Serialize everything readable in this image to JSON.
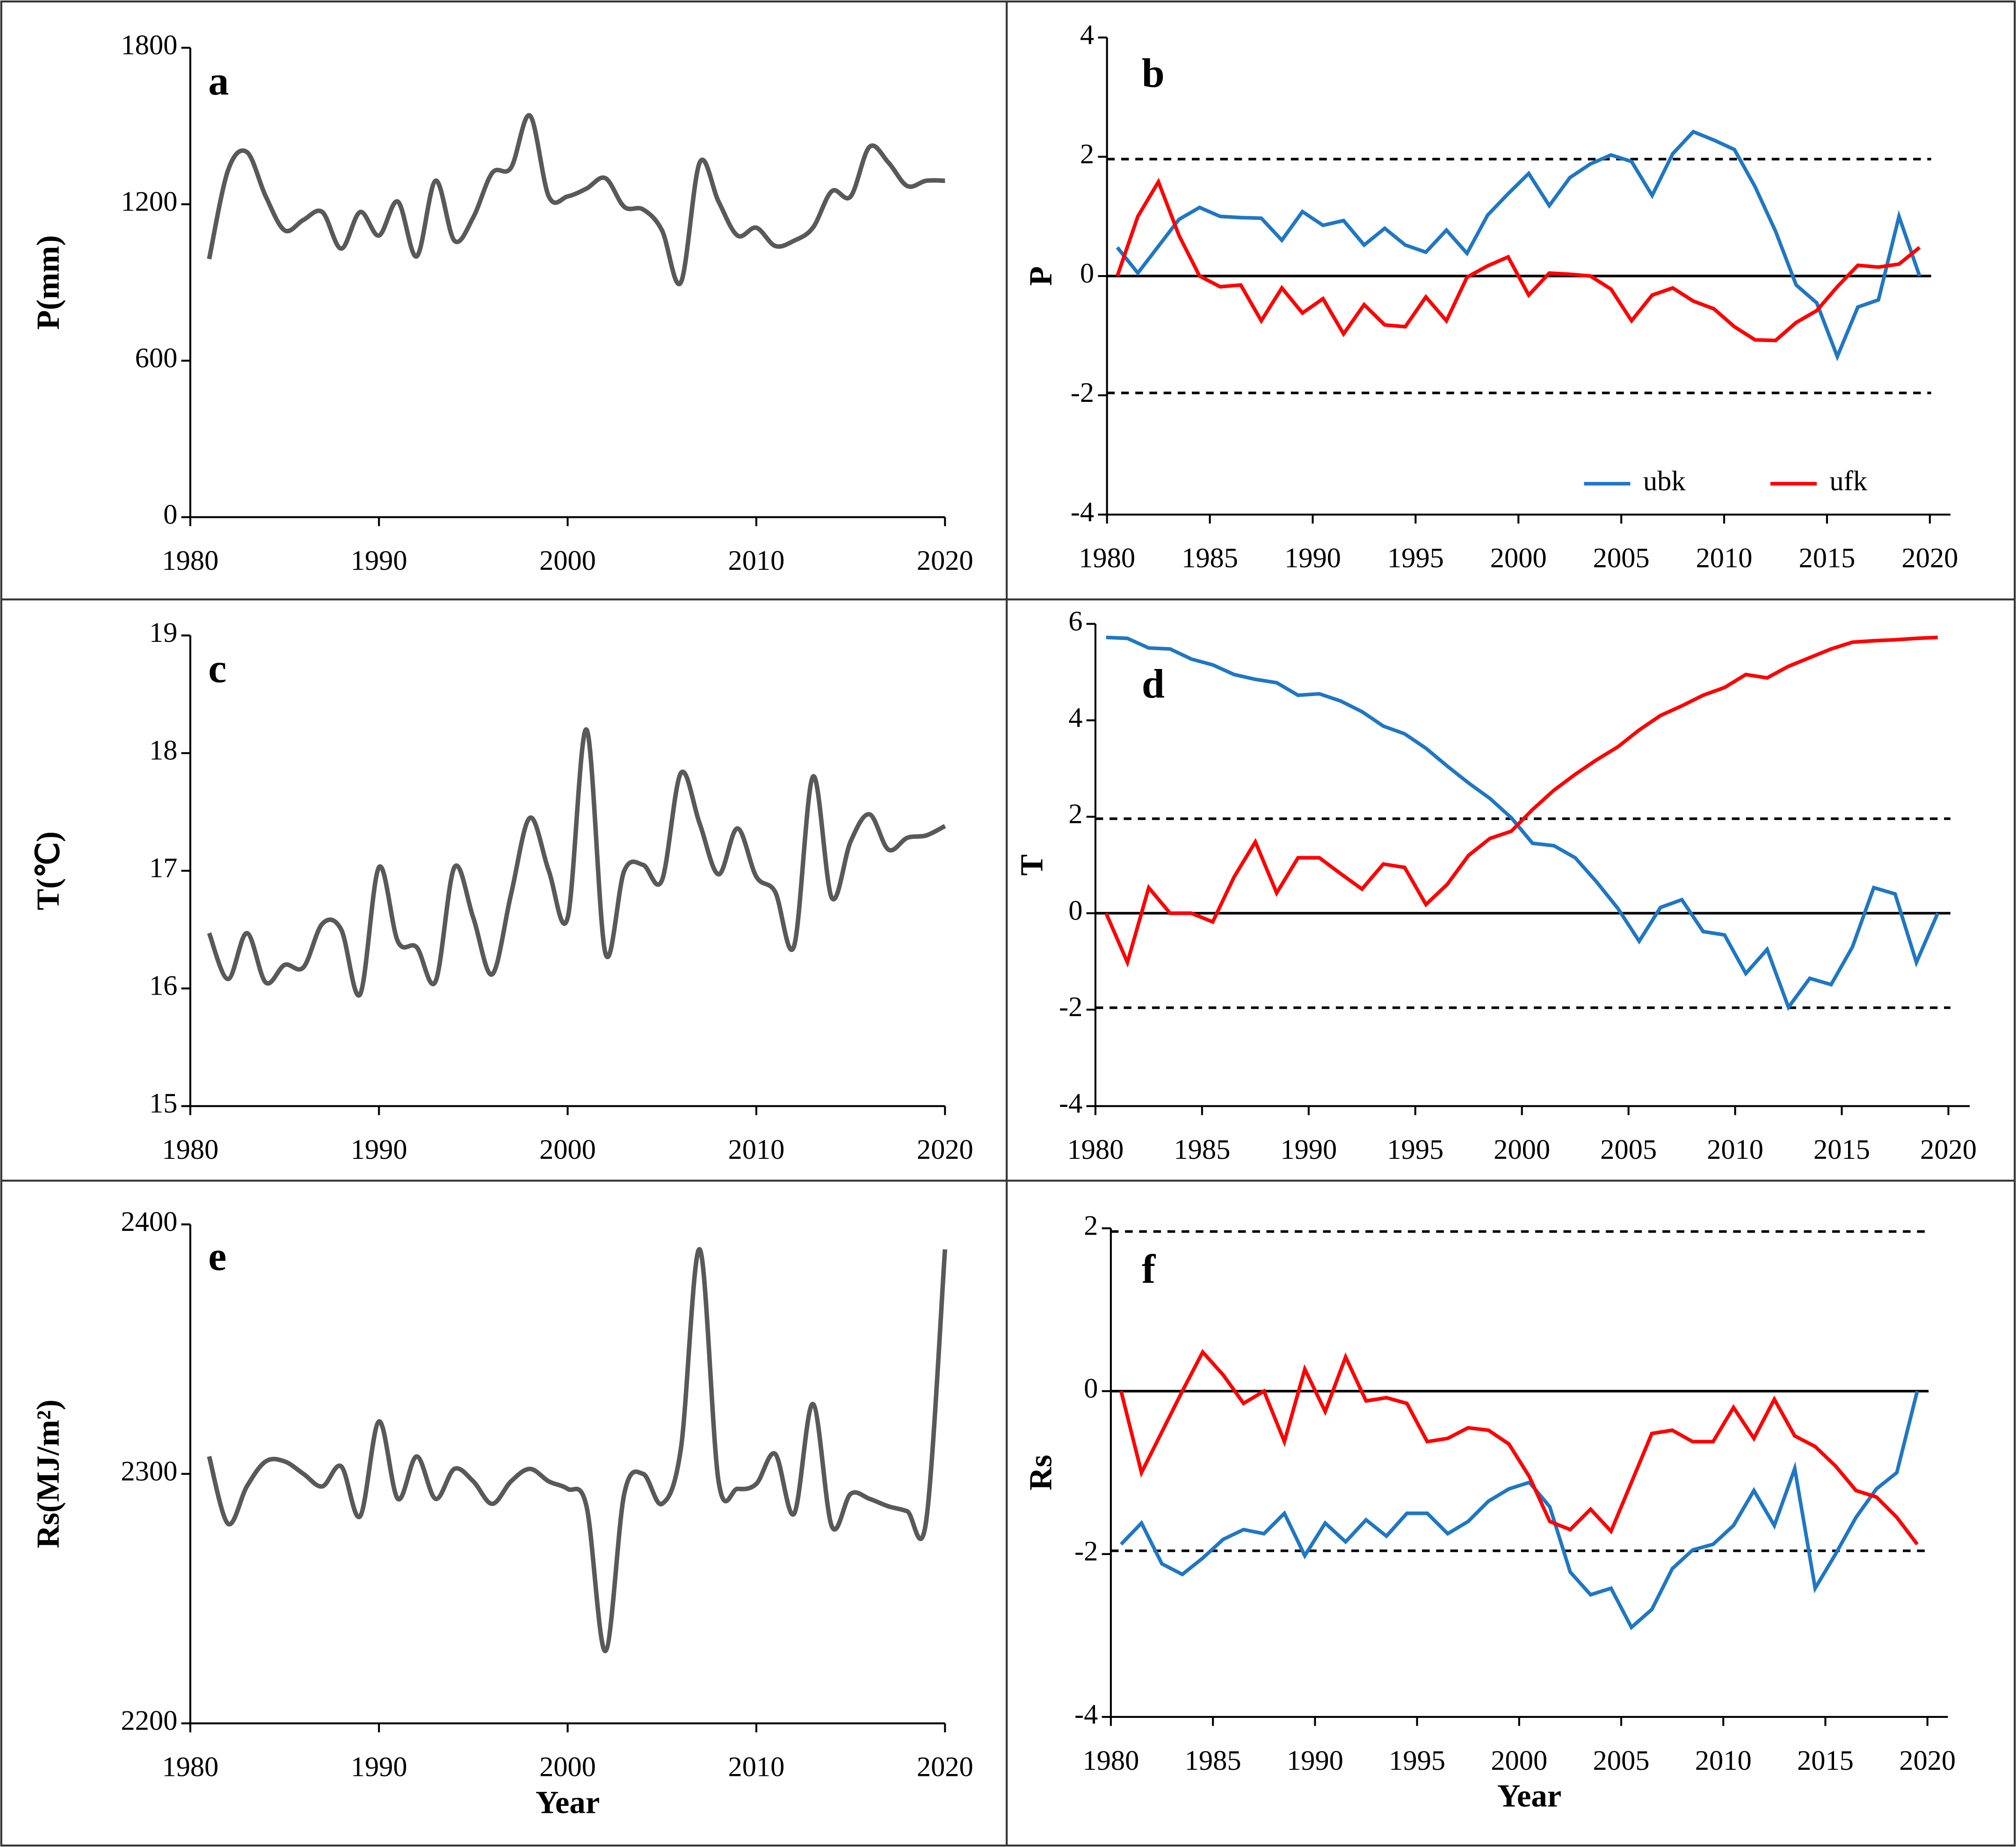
{
  "chart_data": [
    {
      "type": "line",
      "label": "a",
      "ylabel": "P(mm)",
      "smooth": true,
      "color": "#595959",
      "x": [
        1981,
        1982,
        1983,
        1984,
        1985,
        1986,
        1987,
        1988,
        1989,
        1990,
        1991,
        1992,
        1993,
        1994,
        1995,
        1996,
        1997,
        1998,
        1999,
        2000,
        2001,
        2002,
        2003,
        2004,
        2005,
        2006,
        2007,
        2008,
        2009,
        2010,
        2011,
        2012,
        2013,
        2014,
        2015,
        2016,
        2017,
        2018,
        2019,
        2020
      ],
      "values": [
        990,
        1330,
        1400,
        1230,
        1100,
        1140,
        1170,
        1030,
        1170,
        1080,
        1210,
        1000,
        1290,
        1060,
        1150,
        1320,
        1340,
        1540,
        1230,
        1230,
        1260,
        1300,
        1190,
        1180,
        1100,
        900,
        1360,
        1210,
        1080,
        1110,
        1040,
        1060,
        1110,
        1250,
        1230,
        1420,
        1360,
        1270,
        1290,
        1290
      ],
      "xlim": [
        1980,
        2020
      ],
      "xticks": [
        1980,
        1990,
        2000,
        2010,
        2020
      ],
      "ylim": [
        0,
        1800
      ],
      "yticks": [
        0,
        600,
        1200,
        1800
      ]
    },
    {
      "type": "line",
      "label": "b",
      "ylabel": "P",
      "smooth": false,
      "legend": "lower right",
      "x": [
        1980.5,
        1981.5,
        1982.5,
        1983.5,
        1984.5,
        1985.5,
        1986.5,
        1987.5,
        1988.5,
        1989.5,
        1990.5,
        1991.5,
        1992.5,
        1993.5,
        1994.5,
        1995.5,
        1996.5,
        1997.5,
        1998.5,
        1999.5,
        2000.5,
        2001.5,
        2002.5,
        2003.5,
        2004.5,
        2005.5,
        2006.5,
        2007.5,
        2008.5,
        2009.5,
        2010.5,
        2011.5,
        2012.5,
        2013.5,
        2014.5,
        2015.5,
        2016.5,
        2017.5,
        2018.5,
        2019.5
      ],
      "series": [
        {
          "name": "ubk",
          "color": "#1f77c4",
          "values": [
            0.48,
            0.05,
            0.5,
            0.95,
            1.15,
            1.0,
            0.98,
            0.97,
            0.6,
            1.08,
            0.85,
            0.93,
            0.52,
            0.8,
            0.52,
            0.4,
            0.77,
            0.38,
            1.02,
            1.38,
            1.72,
            1.18,
            1.65,
            1.88,
            2.03,
            1.92,
            1.35,
            2.05,
            2.42,
            2.28,
            2.12,
            1.5,
            0.75,
            -0.15,
            -0.45,
            -1.35,
            -0.52,
            -0.4,
            1.0,
            0.0
          ]
        },
        {
          "name": "ufk",
          "color": "#ff0000",
          "values": [
            0.0,
            1.0,
            1.58,
            0.68,
            0.0,
            -0.18,
            -0.15,
            -0.75,
            -0.2,
            -0.62,
            -0.38,
            -0.97,
            -0.48,
            -0.82,
            -0.85,
            -0.35,
            -0.75,
            -0.02,
            0.17,
            0.32,
            -0.32,
            0.05,
            0.03,
            0.0,
            -0.22,
            -0.75,
            -0.32,
            -0.2,
            -0.42,
            -0.55,
            -0.85,
            -1.07,
            -1.08,
            -0.78,
            -0.58,
            -0.18,
            0.18,
            0.15,
            0.2,
            0.48
          ]
        }
      ],
      "solid_lines": [
        0
      ],
      "dashed_lines": [
        1.96,
        -1.96
      ],
      "xlim": [
        1980,
        2021
      ],
      "xticks": [
        1980,
        1985,
        1990,
        1995,
        2000,
        2005,
        2010,
        2015,
        2020
      ],
      "ylim": [
        -4,
        4
      ],
      "yticks": [
        -4,
        -2,
        0,
        2,
        4
      ]
    },
    {
      "type": "line",
      "label": "c",
      "ylabel": "T(℃)",
      "smooth": true,
      "color": "#595959",
      "x": [
        1981,
        1982,
        1983,
        1984,
        1985,
        1986,
        1987,
        1988,
        1989,
        1990,
        1991,
        1992,
        1993,
        1994,
        1995,
        1996,
        1997,
        1998,
        1999,
        2000,
        2001,
        2002,
        2003,
        2004,
        2005,
        2006,
        2007,
        2008,
        2009,
        2010,
        2011,
        2012,
        2013,
        2014,
        2015,
        2016,
        2017,
        2018,
        2019,
        2020
      ],
      "values": [
        16.47,
        16.08,
        16.47,
        16.05,
        16.2,
        16.18,
        16.55,
        16.5,
        15.95,
        17.03,
        16.4,
        16.35,
        16.06,
        17.03,
        16.6,
        16.12,
        16.8,
        17.45,
        17.0,
        16.6,
        18.2,
        16.3,
        17.0,
        17.05,
        16.92,
        17.83,
        17.4,
        16.97,
        17.36,
        16.95,
        16.82,
        16.36,
        17.8,
        16.77,
        17.25,
        17.48,
        17.18,
        17.28,
        17.3,
        17.38
      ],
      "xlim": [
        1980,
        2020
      ],
      "xticks": [
        1980,
        1990,
        2000,
        2010,
        2020
      ],
      "ylim": [
        15,
        19
      ],
      "yticks": [
        15,
        16,
        17,
        18,
        19
      ]
    },
    {
      "type": "line",
      "label": "d",
      "ylabel": "T",
      "smooth": false,
      "x": [
        1980.5,
        1981.5,
        1982.5,
        1983.5,
        1984.5,
        1985.5,
        1986.5,
        1987.5,
        1988.5,
        1989.5,
        1990.5,
        1991.5,
        1992.5,
        1993.5,
        1994.5,
        1995.5,
        1996.5,
        1997.5,
        1998.5,
        1999.5,
        2000.5,
        2001.5,
        2002.5,
        2003.5,
        2004.5,
        2005.5,
        2006.5,
        2007.5,
        2008.5,
        2009.5,
        2010.5,
        2011.5,
        2012.5,
        2013.5,
        2014.5,
        2015.5,
        2016.5,
        2017.5,
        2018.5,
        2019.5
      ],
      "series": [
        {
          "color": "#1f77c4",
          "values": [
            5.72,
            5.7,
            5.5,
            5.48,
            5.27,
            5.15,
            4.95,
            4.85,
            4.78,
            4.52,
            4.55,
            4.4,
            4.18,
            3.88,
            3.72,
            3.42,
            3.05,
            2.7,
            2.38,
            1.98,
            1.45,
            1.4,
            1.15,
            0.65,
            0.1,
            -0.58,
            0.12,
            0.28,
            -0.38,
            -0.45,
            -1.25,
            -0.75,
            -1.95,
            -1.35,
            -1.48,
            -0.7,
            0.53,
            0.4,
            -1.02,
            0.0
          ]
        },
        {
          "color": "#ff0000",
          "values": [
            0.0,
            -1.02,
            0.53,
            0.0,
            0.0,
            -0.18,
            0.75,
            1.48,
            0.42,
            1.15,
            1.15,
            0.82,
            0.5,
            1.02,
            0.95,
            0.18,
            0.6,
            1.2,
            1.55,
            1.7,
            2.15,
            2.55,
            2.88,
            3.18,
            3.45,
            3.8,
            4.1,
            4.3,
            4.52,
            4.68,
            4.95,
            4.88,
            5.12,
            5.3,
            5.48,
            5.62,
            5.65,
            5.67,
            5.7,
            5.72
          ]
        }
      ],
      "solid_lines": [
        0
      ],
      "dashed_lines": [
        1.96,
        -1.96
      ],
      "xlim": [
        1980,
        2021
      ],
      "xticks": [
        1980,
        1985,
        1990,
        1995,
        2000,
        2005,
        2010,
        2015,
        2020
      ],
      "ylim": [
        -4,
        6
      ],
      "yticks": [
        -4,
        -2,
        0,
        2,
        4,
        6
      ]
    },
    {
      "type": "line",
      "label": "e",
      "ylabel": "Rs(MJ/m²)",
      "xlabel": "Year",
      "smooth": true,
      "color": "#595959",
      "x": [
        1981,
        1982,
        1983,
        1984,
        1985,
        1986,
        1987,
        1988,
        1989,
        1990,
        1991,
        1992,
        1993,
        1994,
        1995,
        1996,
        1997,
        1998,
        1999,
        2000,
        2001,
        2002,
        2003,
        2004,
        2005,
        2006,
        2007,
        2008,
        2009,
        2010,
        2011,
        2012,
        2013,
        2014,
        2015,
        2016,
        2017,
        2018,
        2019,
        2020
      ],
      "values": [
        2307,
        2280,
        2295,
        2305,
        2305,
        2300,
        2295,
        2303,
        2283,
        2321,
        2290,
        2307,
        2290,
        2302,
        2297,
        2288,
        2297,
        2302,
        2297,
        2294,
        2287,
        2229,
        2292,
        2300,
        2288,
        2310,
        2390,
        2297,
        2294,
        2296,
        2308,
        2284,
        2328,
        2279,
        2292,
        2290,
        2287,
        2285,
        2281,
        2390
      ],
      "xlim": [
        1980,
        2020
      ],
      "xticks": [
        1980,
        1990,
        2000,
        2010,
        2020
      ],
      "ylim": [
        2200,
        2400
      ],
      "yticks": [
        2200,
        2300,
        2400
      ]
    },
    {
      "type": "line",
      "label": "f",
      "ylabel": "Rs",
      "xlabel": "Year",
      "smooth": false,
      "x": [
        1980.5,
        1981.5,
        1982.5,
        1983.5,
        1984.5,
        1985.5,
        1986.5,
        1987.5,
        1988.5,
        1989.5,
        1990.5,
        1991.5,
        1992.5,
        1993.5,
        1994.5,
        1995.5,
        1996.5,
        1997.5,
        1998.5,
        1999.5,
        2000.5,
        2001.5,
        2002.5,
        2003.5,
        2004.5,
        2005.5,
        2006.5,
        2007.5,
        2008.5,
        2009.5,
        2010.5,
        2011.5,
        2012.5,
        2013.5,
        2014.5,
        2015.5,
        2016.5,
        2017.5,
        2018.5,
        2019.5
      ],
      "series": [
        {
          "color": "#1f77c4",
          "values": [
            -1.88,
            -1.62,
            -2.12,
            -2.25,
            -2.05,
            -1.82,
            -1.7,
            -1.75,
            -1.5,
            -2.02,
            -1.62,
            -1.85,
            -1.58,
            -1.78,
            -1.5,
            -1.5,
            -1.75,
            -1.6,
            -1.35,
            -1.2,
            -1.12,
            -1.42,
            -2.22,
            -2.5,
            -2.42,
            -2.9,
            -2.68,
            -2.18,
            -1.95,
            -1.88,
            -1.65,
            -1.22,
            -1.65,
            -0.95,
            -2.42,
            -2.0,
            -1.55,
            -1.2,
            -1.0,
            0.0
          ]
        },
        {
          "color": "#ff0000",
          "values": [
            0.0,
            -1.0,
            -0.5,
            0.0,
            0.48,
            0.2,
            -0.15,
            0.0,
            -0.62,
            0.27,
            -0.25,
            0.42,
            -0.12,
            -0.08,
            -0.15,
            -0.62,
            -0.58,
            -0.45,
            -0.48,
            -0.65,
            -1.05,
            -1.6,
            -1.7,
            -1.45,
            -1.72,
            -1.12,
            -0.52,
            -0.48,
            -0.62,
            -0.62,
            -0.2,
            -0.58,
            -0.1,
            -0.55,
            -0.68,
            -0.92,
            -1.22,
            -1.3,
            -1.55,
            -1.88
          ]
        }
      ],
      "solid_lines": [
        0
      ],
      "dashed_lines": [
        1.96,
        -1.96
      ],
      "xlim": [
        1980,
        2021
      ],
      "xticks": [
        1980,
        1985,
        1990,
        1995,
        2000,
        2005,
        2010,
        2015,
        2020
      ],
      "ylim": [
        -4,
        2
      ],
      "yticks": [
        -4,
        -2,
        0,
        2
      ]
    }
  ]
}
